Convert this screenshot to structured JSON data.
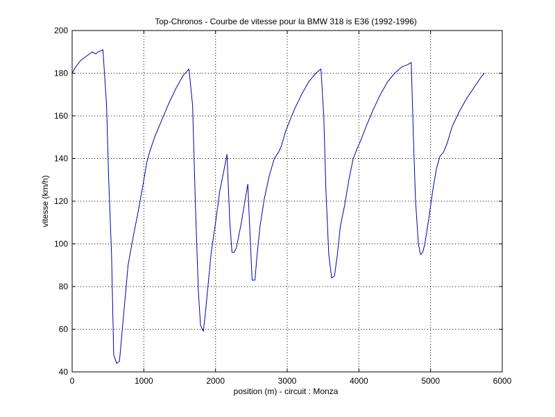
{
  "chart_data": {
    "type": "line",
    "title": "Top-Chronos - Courbe de vitesse pour la BMW 318 is E36 (1992-1996)",
    "xlabel": "position (m) - circuit : Monza",
    "ylabel": "vitesse (km/h)",
    "xlim": [
      0,
      6000
    ],
    "ylim": [
      40,
      200
    ],
    "xticks": [
      0,
      1000,
      2000,
      3000,
      4000,
      5000,
      6000
    ],
    "yticks": [
      40,
      60,
      80,
      100,
      120,
      140,
      160,
      180,
      200
    ],
    "grid": true,
    "line_color": "#0000aa",
    "series": [
      {
        "x": [
          0,
          50,
          120,
          200,
          280,
          330,
          360,
          400,
          430,
          480,
          510,
          550,
          580,
          620,
          660,
          700,
          740,
          780,
          850,
          920,
          990,
          1040,
          1080,
          1150,
          1250,
          1350,
          1450,
          1550,
          1630,
          1680,
          1720,
          1760,
          1790,
          1830,
          1860,
          1900,
          1940,
          2000,
          2060,
          2120,
          2160,
          2200,
          2230,
          2260,
          2290,
          2320,
          2360,
          2400,
          2450,
          2480,
          2510,
          2550,
          2580,
          2620,
          2680,
          2750,
          2820,
          2880,
          2920,
          2980,
          3100,
          3200,
          3300,
          3400,
          3470,
          3510,
          3540,
          3580,
          3620,
          3660,
          3700,
          3740,
          3800,
          3860,
          3920,
          3980,
          4020,
          4100,
          4200,
          4300,
          4400,
          4500,
          4600,
          4680,
          4730,
          4760,
          4790,
          4830,
          4860,
          4890,
          4920,
          4980,
          5030,
          5080,
          5130,
          5180,
          5230,
          5300,
          5400,
          5500,
          5600,
          5700,
          5750
        ],
        "y": [
          180,
          183,
          186,
          188,
          190,
          189,
          190,
          190.5,
          191,
          165,
          130,
          95,
          48,
          44,
          45,
          60,
          75,
          90,
          103,
          115,
          128,
          138,
          143,
          150,
          158,
          166,
          173,
          179,
          182,
          165,
          118,
          78,
          62,
          59,
          68,
          82,
          96,
          110,
          125,
          135,
          142,
          110,
          96,
          96,
          98,
          103,
          110,
          118,
          128,
          105,
          83,
          83,
          95,
          108,
          121,
          132,
          140,
          143,
          146,
          153,
          163,
          170,
          176,
          180,
          182,
          160,
          125,
          95,
          84,
          85,
          95,
          108,
          118,
          130,
          140,
          145,
          148,
          155,
          163,
          170,
          176,
          180,
          183,
          184,
          185,
          150,
          120,
          100,
          95,
          96,
          100,
          113,
          125,
          135,
          141,
          143,
          147,
          155,
          162,
          168,
          173,
          178,
          180
        ]
      }
    ]
  }
}
